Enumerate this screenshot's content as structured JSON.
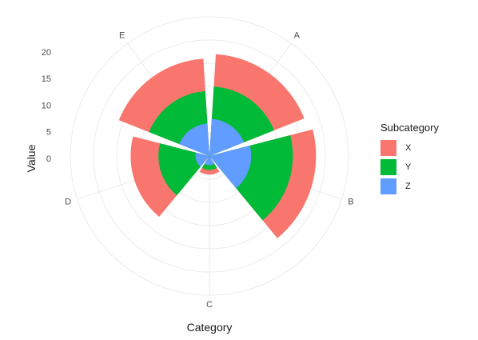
{
  "chart_data": {
    "type": "polar-bar",
    "title": "",
    "xlabel": "Category",
    "ylabel": "Value",
    "categories": [
      "A",
      "B",
      "C",
      "D",
      "E"
    ],
    "legend": {
      "title": "Subcategory",
      "position": "right"
    },
    "series": [
      {
        "name": "X",
        "color": "#F8766D",
        "values": [
          22,
          23,
          4,
          17,
          21
        ]
      },
      {
        "name": "Y",
        "color": "#00BA38",
        "values": [
          15,
          18,
          3,
          11,
          14
        ]
      },
      {
        "name": "Z",
        "color": "#619CFF",
        "values": [
          8,
          9,
          2,
          3,
          7
        ]
      }
    ],
    "y_ticks": [
      0,
      5,
      10,
      15,
      20
    ],
    "ylim": [
      0,
      30
    ],
    "grid": true
  }
}
